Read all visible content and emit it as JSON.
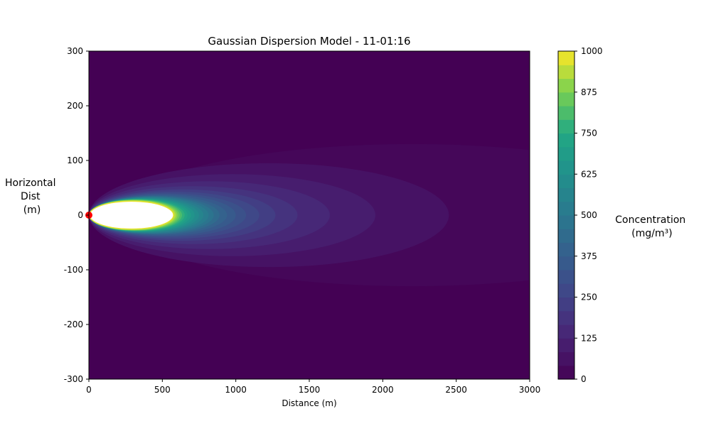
{
  "chart_data": {
    "type": "heatmap",
    "subtype": "filled-contour",
    "title": "Gaussian Dispersion Model - 11-01:16",
    "xlabel": "Distance (m)",
    "ylabel_lines": [
      "Horizontal",
      "Dist",
      "(m)"
    ],
    "xlim": [
      0,
      3000
    ],
    "ylim": [
      -300,
      300
    ],
    "x_ticks": [
      "0",
      "500",
      "1000",
      "1500",
      "2000",
      "2500",
      "3000"
    ],
    "y_ticks": [
      "300",
      "200",
      "100",
      "0",
      "-100",
      "-200",
      "-300"
    ],
    "colorbar": {
      "label_lines": [
        "Concentration",
        "(mg/m³)"
      ],
      "colormap": "viridis",
      "range": [
        0,
        1000
      ],
      "levels": 24,
      "ticks": [
        "1000",
        "875",
        "750",
        "625",
        "500",
        "375",
        "250",
        "125",
        "0"
      ],
      "over_color": "#ffffff"
    },
    "contours": [
      {
        "level": 41.7,
        "x_min": 0,
        "x_max": 4000,
        "half_width": 130,
        "center_x": 2200
      },
      {
        "level": 83.3,
        "x_min": 0,
        "x_max": 2450,
        "half_width": 95
      },
      {
        "level": 125,
        "x_min": 0,
        "x_max": 1950,
        "half_width": 75
      },
      {
        "level": 166.7,
        "x_min": 0,
        "x_max": 1640,
        "half_width": 62
      },
      {
        "level": 208.3,
        "x_min": 0,
        "x_max": 1420,
        "half_width": 53
      },
      {
        "level": 250,
        "x_min": 0,
        "x_max": 1270,
        "half_width": 47
      },
      {
        "level": 291.7,
        "x_min": 0,
        "x_max": 1160,
        "half_width": 43
      },
      {
        "level": 333.3,
        "x_min": 0,
        "x_max": 1070,
        "half_width": 40
      },
      {
        "level": 375,
        "x_min": 0,
        "x_max": 1000,
        "half_width": 38
      },
      {
        "level": 416.7,
        "x_min": 0,
        "x_max": 940,
        "half_width": 36
      },
      {
        "level": 458.3,
        "x_min": 0,
        "x_max": 890,
        "half_width": 35
      },
      {
        "level": 500,
        "x_min": 0,
        "x_max": 850,
        "half_width": 34
      },
      {
        "level": 541.7,
        "x_min": 0,
        "x_max": 815,
        "half_width": 33
      },
      {
        "level": 583.3,
        "x_min": 0,
        "x_max": 780,
        "half_width": 32
      },
      {
        "level": 625,
        "x_min": 0,
        "x_max": 750,
        "half_width": 31
      },
      {
        "level": 666.7,
        "x_min": 0,
        "x_max": 720,
        "half_width": 30.5
      },
      {
        "level": 708.3,
        "x_min": 0,
        "x_max": 695,
        "half_width": 30
      },
      {
        "level": 750,
        "x_min": 0,
        "x_max": 672,
        "half_width": 29.5
      },
      {
        "level": 791.7,
        "x_min": 0,
        "x_max": 652,
        "half_width": 29
      },
      {
        "level": 833.3,
        "x_min": 0,
        "x_max": 634,
        "half_width": 28.5
      },
      {
        "level": 875,
        "x_min": 0,
        "x_max": 618,
        "half_width": 28
      },
      {
        "level": 916.7,
        "x_min": 0,
        "x_max": 604,
        "half_width": 27.5
      },
      {
        "level": 958.3,
        "x_min": 0,
        "x_max": 592,
        "half_width": 27
      },
      {
        "level": 1000,
        "x_min": 0,
        "x_max": 580,
        "half_width": 26.5
      }
    ],
    "source_marker": {
      "x": 0,
      "y": 0,
      "color": "#ff0000"
    },
    "background_color": "#440154"
  }
}
